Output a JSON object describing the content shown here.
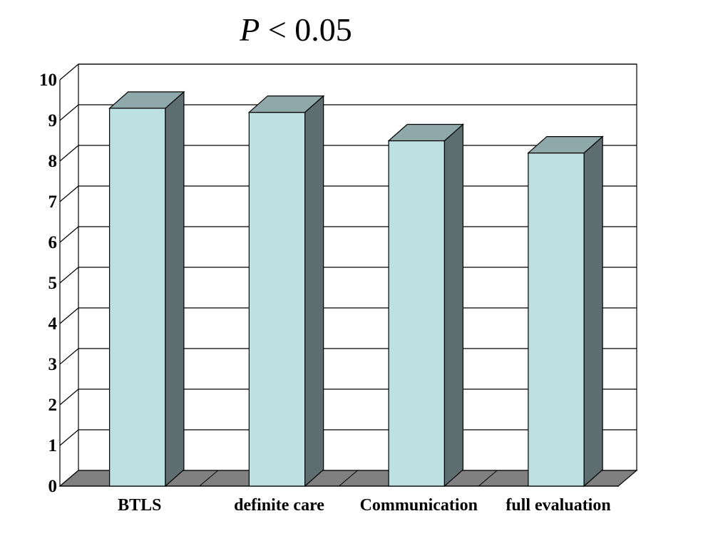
{
  "chart_data": {
    "type": "bar",
    "title_prefix": "P",
    "title_rest": " < 0.05",
    "categories": [
      "BTLS",
      "definite care",
      "Communication",
      "full evaluation"
    ],
    "values": [
      9.3,
      9.2,
      8.5,
      8.2
    ],
    "ylim": [
      0,
      10
    ],
    "yticks": [
      "0",
      "1",
      "2",
      "3",
      "4",
      "5",
      "6",
      "7",
      "8",
      "9",
      "10"
    ],
    "xlabel": "",
    "ylabel": "",
    "grid": true,
    "legend": "none",
    "style": "3d",
    "colors": {
      "bar_front": "#bde0e3",
      "bar_top": "#8fa8aa",
      "bar_side": "#5e6e70",
      "floor": "#808080",
      "grid": "#000000"
    }
  }
}
